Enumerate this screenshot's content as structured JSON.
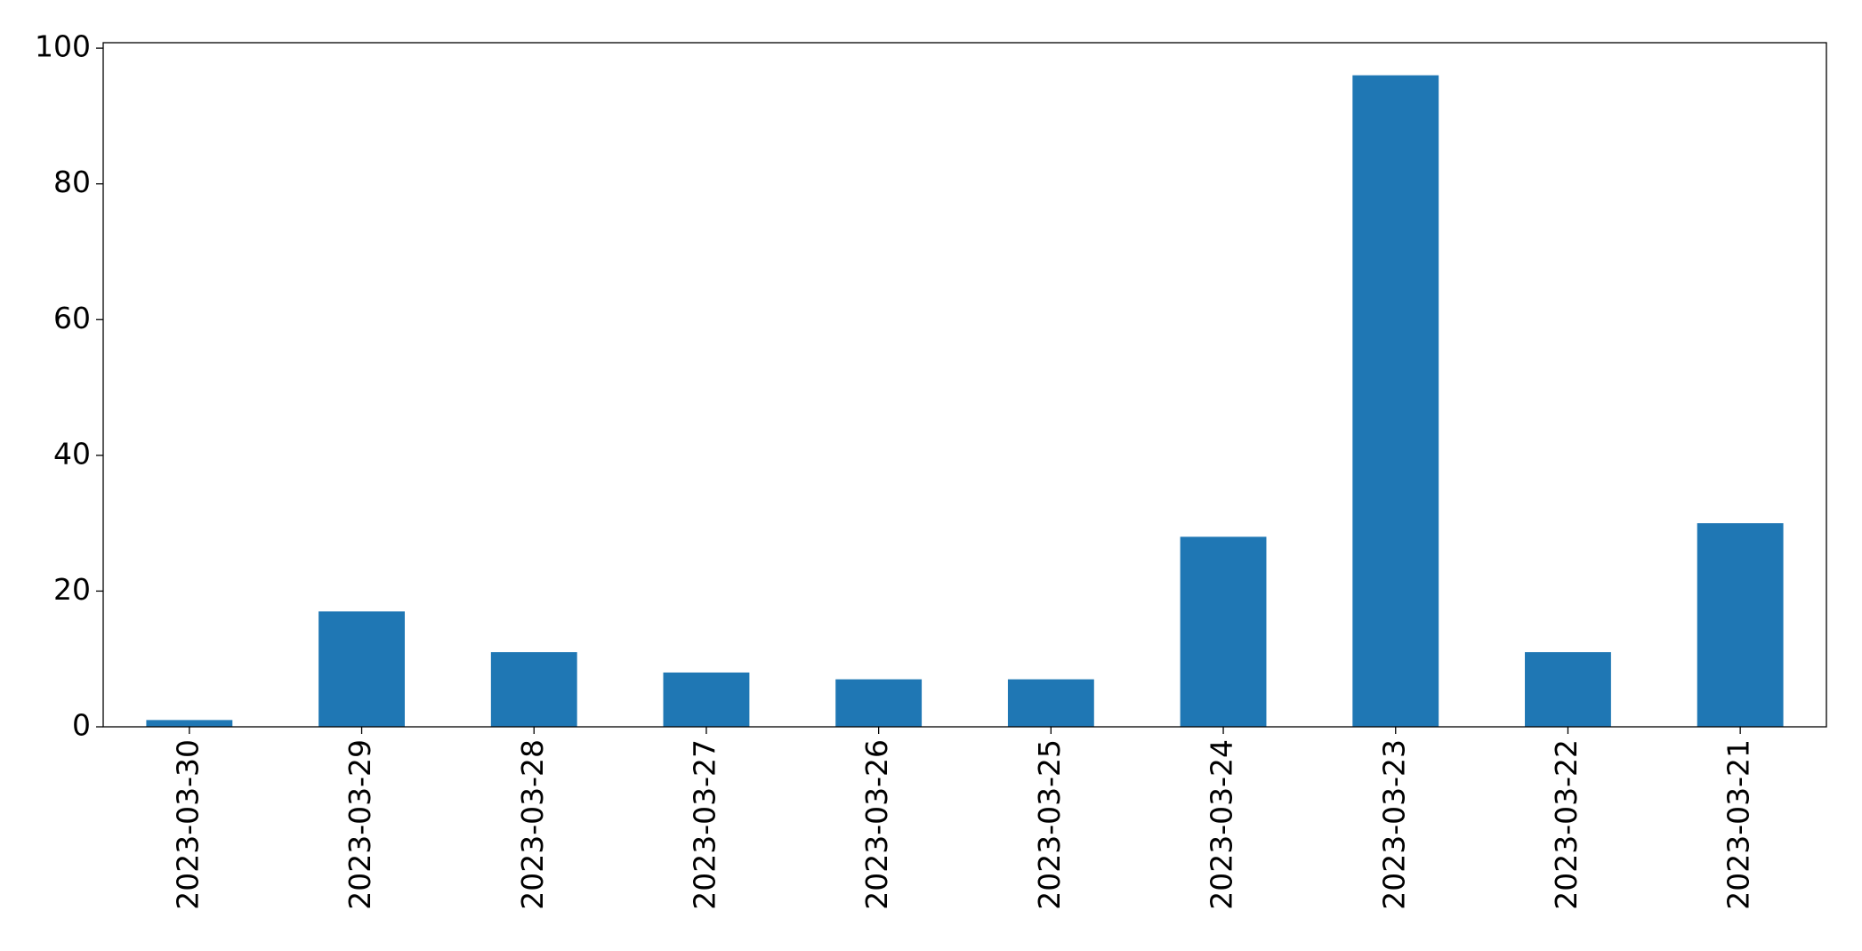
{
  "chart_data": {
    "type": "bar",
    "categories": [
      "2023-03-30",
      "2023-03-29",
      "2023-03-28",
      "2023-03-27",
      "2023-03-26",
      "2023-03-25",
      "2023-03-24",
      "2023-03-23",
      "2023-03-22",
      "2023-03-21"
    ],
    "values": [
      1,
      17,
      11,
      8,
      7,
      7,
      28,
      96,
      11,
      30
    ],
    "color": "#1f77b4",
    "ylim": [
      0,
      100.8
    ],
    "yticks": [
      0,
      20,
      40,
      60,
      80,
      100
    ],
    "grid": false
  }
}
